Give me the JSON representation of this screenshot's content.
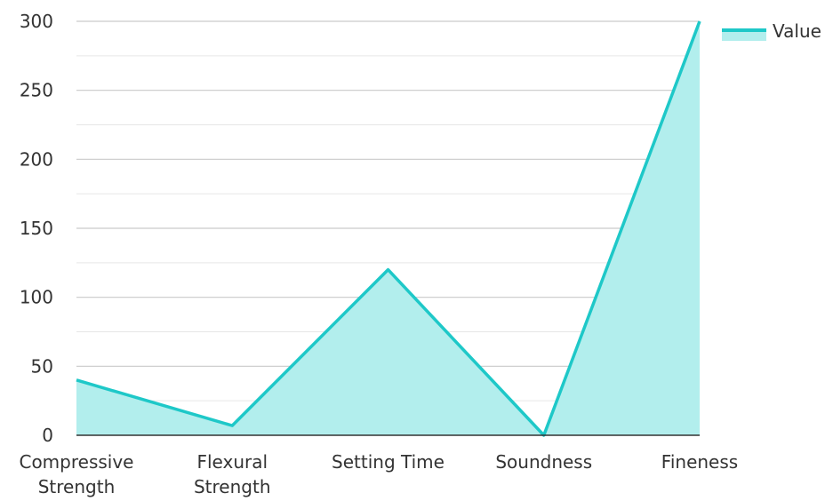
{
  "chart_data": {
    "type": "area",
    "categories": [
      "Compressive Strength",
      "Flexural Strength",
      "Setting Time",
      "Soundness",
      "Fineness"
    ],
    "series": [
      {
        "name": "Value",
        "values": [
          40,
          7,
          120,
          0,
          300
        ]
      }
    ],
    "title": "",
    "xlabel": "",
    "ylabel": "",
    "ylim": [
      0,
      300
    ],
    "yticks": [
      "0",
      "50",
      "100",
      "150",
      "200",
      "250",
      "300"
    ],
    "grid": true,
    "legend_position": "top-right",
    "colors": {
      "line": "#1ec8c8",
      "fill": "#b2eeed",
      "grid": "#c9c9c9",
      "axis": "#333333"
    }
  }
}
